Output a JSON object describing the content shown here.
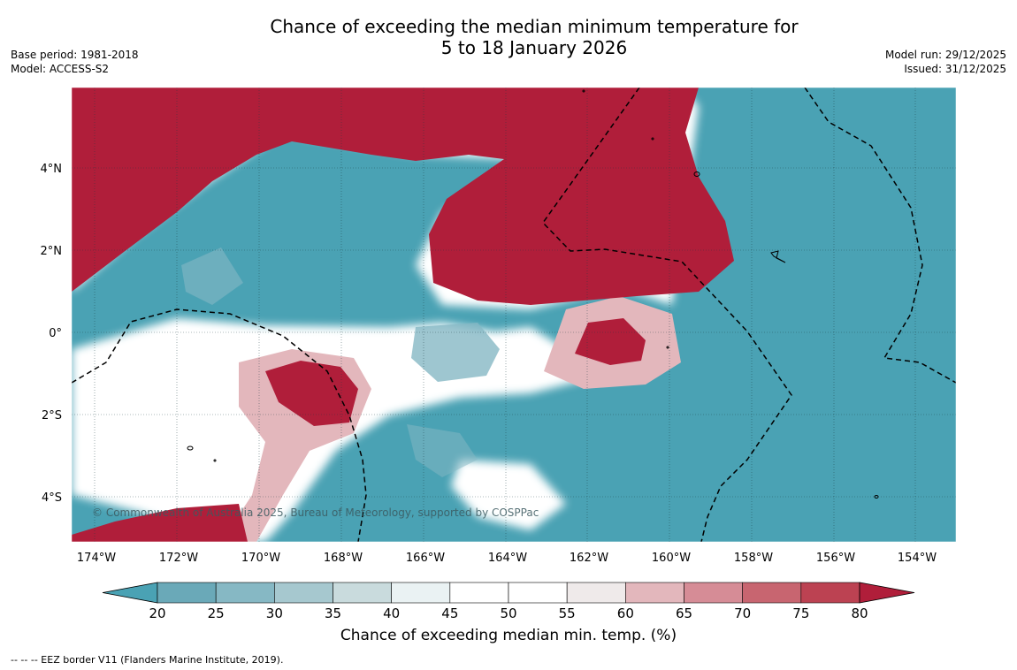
{
  "title_line1": "Chance of exceeding the median minimum temperature for",
  "title_line2": "5 to 18 January 2026",
  "meta": {
    "base_period": "Base period: 1981-2018",
    "model": "Model: ACCESS-S2",
    "model_run": "Model run: 29/12/2025",
    "issued": "Issued: 31/12/2025"
  },
  "copyright": "© Commonwealth of Australia 2025, Bureau of Meteorology, supported by COSPPac",
  "colorbar": {
    "label": "Chance of exceeding median min. temp. (%)",
    "ticks": [
      "20",
      "25",
      "30",
      "35",
      "40",
      "45",
      "50",
      "55",
      "60",
      "65",
      "70",
      "75",
      "80"
    ],
    "colors": [
      "#6aa9b8",
      "#86b8c4",
      "#a6c8cf",
      "#c9dbdd",
      "#eaf2f3",
      "#ffffff",
      "#ffffff",
      "#efeaea",
      "#e3b7bc",
      "#d68c96",
      "#c86570",
      "#bc4252"
    ],
    "low_extend_color": "#4aa2b4",
    "high_extend_color": "#b01e3a"
  },
  "map": {
    "lon_ticks": [
      "174°W",
      "172°W",
      "170°W",
      "168°W",
      "166°W",
      "164°W",
      "162°W",
      "160°W",
      "158°W",
      "156°W",
      "154°W"
    ],
    "lat_ticks": [
      "4°N",
      "2°N",
      "0°",
      "2°S",
      "4°S"
    ],
    "colors": {
      "below": "#4aa2b4",
      "above": "#b01e3a"
    }
  },
  "footer": "--  --  -- EEZ border V11 (Flanders Marine Institute, 2019)."
}
